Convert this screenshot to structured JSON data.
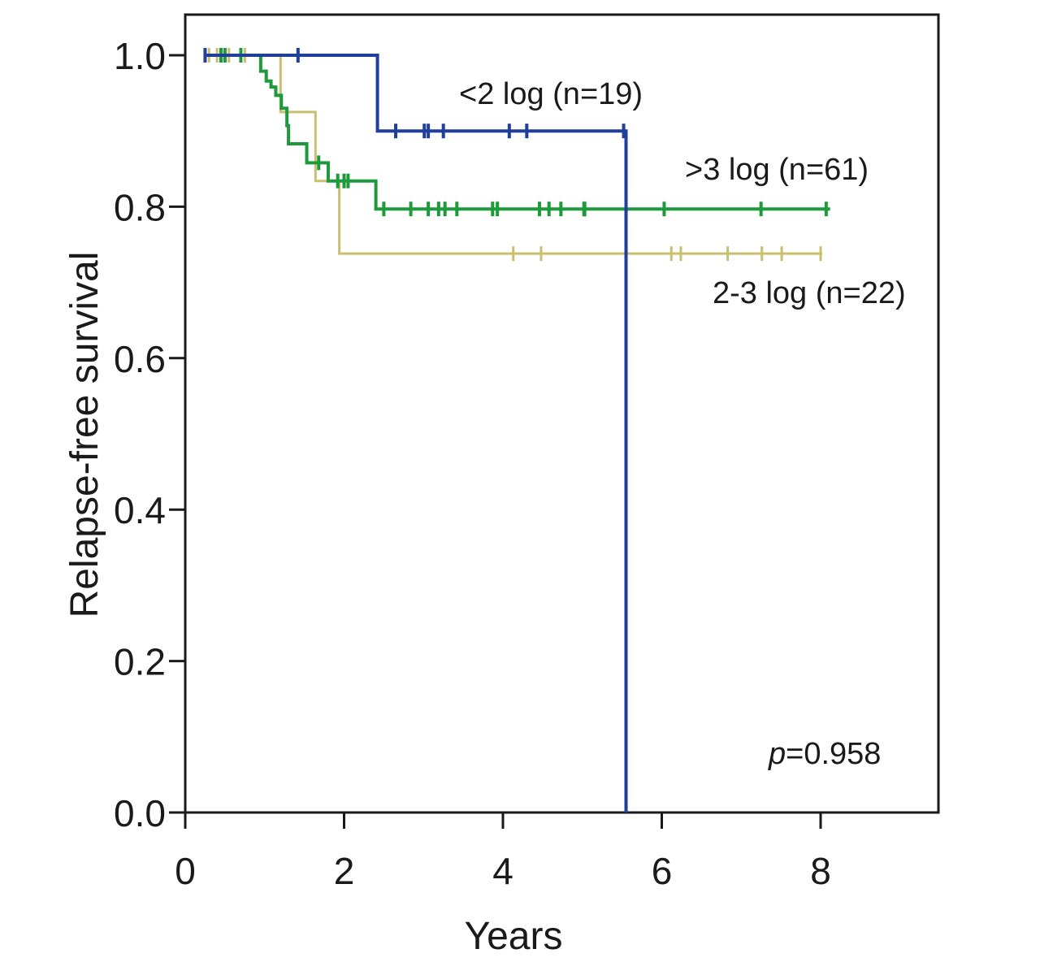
{
  "chart_data": {
    "type": "line",
    "subtype": "kaplan-meier",
    "xlabel": "Years",
    "ylabel": "Relapse-free survival",
    "xlim": [
      0,
      9.5
    ],
    "ylim": [
      0,
      1.05
    ],
    "xticks": [
      "0",
      "2",
      "4",
      "6",
      "8"
    ],
    "xtick_values": [
      0,
      2,
      4,
      6,
      8
    ],
    "yticks": [
      "0.0",
      "0.2",
      "0.4",
      "0.6",
      "0.8",
      "1.0"
    ],
    "ytick_values": [
      0,
      0.2,
      0.4,
      0.6,
      0.8,
      1.0
    ],
    "grid": false,
    "annotation": {
      "p_label": "p",
      "p_value": "=0.958"
    },
    "series": [
      {
        "name": "<2 log (n=19)",
        "color": "#1f3f9a",
        "steps": [
          [
            0.25,
            1.0
          ],
          [
            2.42,
            0.9
          ],
          [
            5.55,
            0.0
          ]
        ],
        "end": 5.55,
        "censor": [
          [
            0.25,
            1.0
          ],
          [
            1.42,
            1.0
          ],
          [
            2.65,
            0.9
          ],
          [
            3.01,
            0.9
          ],
          [
            3.06,
            0.9
          ],
          [
            3.25,
            0.9
          ],
          [
            4.08,
            0.9
          ],
          [
            4.3,
            0.9
          ],
          [
            5.52,
            0.9
          ]
        ]
      },
      {
        "name": ">3 log (n=61)",
        "color": "#1e9a3c",
        "steps": [
          [
            0.3,
            1.0
          ],
          [
            0.95,
            0.979
          ],
          [
            1.02,
            0.966
          ],
          [
            1.08,
            0.958
          ],
          [
            1.14,
            0.947
          ],
          [
            1.21,
            0.93
          ],
          [
            1.28,
            0.907
          ],
          [
            1.3,
            0.883
          ],
          [
            1.53,
            0.858
          ],
          [
            1.8,
            0.834
          ],
          [
            2.4,
            0.797
          ]
        ],
        "end": 8.12,
        "censor": [
          [
            0.45,
            1.0
          ],
          [
            0.5,
            1.0
          ],
          [
            0.7,
            1.0
          ],
          [
            1.68,
            0.858
          ],
          [
            1.92,
            0.834
          ],
          [
            2.0,
            0.834
          ],
          [
            2.05,
            0.834
          ],
          [
            2.5,
            0.797
          ],
          [
            2.84,
            0.797
          ],
          [
            3.06,
            0.797
          ],
          [
            3.19,
            0.797
          ],
          [
            3.27,
            0.797
          ],
          [
            3.42,
            0.797
          ],
          [
            3.87,
            0.797
          ],
          [
            3.93,
            0.797
          ],
          [
            4.46,
            0.797
          ],
          [
            4.58,
            0.797
          ],
          [
            4.73,
            0.797
          ],
          [
            5.02,
            0.797
          ],
          [
            5.03,
            0.797
          ],
          [
            6.03,
            0.797
          ],
          [
            7.25,
            0.797
          ],
          [
            8.07,
            0.797
          ]
        ]
      },
      {
        "name": "2-3 log (n=22)",
        "color": "#c8c070",
        "steps": [
          [
            0.3,
            1.0
          ],
          [
            1.2,
            0.925
          ],
          [
            1.64,
            0.834
          ],
          [
            1.94,
            0.738
          ]
        ],
        "end": 8.02,
        "censor": [
          [
            0.3,
            1.0
          ],
          [
            0.4,
            1.0
          ],
          [
            0.55,
            1.0
          ],
          [
            0.75,
            1.0
          ],
          [
            4.13,
            0.738
          ],
          [
            4.48,
            0.738
          ],
          [
            6.12,
            0.738
          ],
          [
            6.24,
            0.738
          ],
          [
            6.83,
            0.738
          ],
          [
            7.26,
            0.738
          ],
          [
            7.51,
            0.738
          ],
          [
            8.0,
            0.738
          ]
        ]
      }
    ]
  }
}
